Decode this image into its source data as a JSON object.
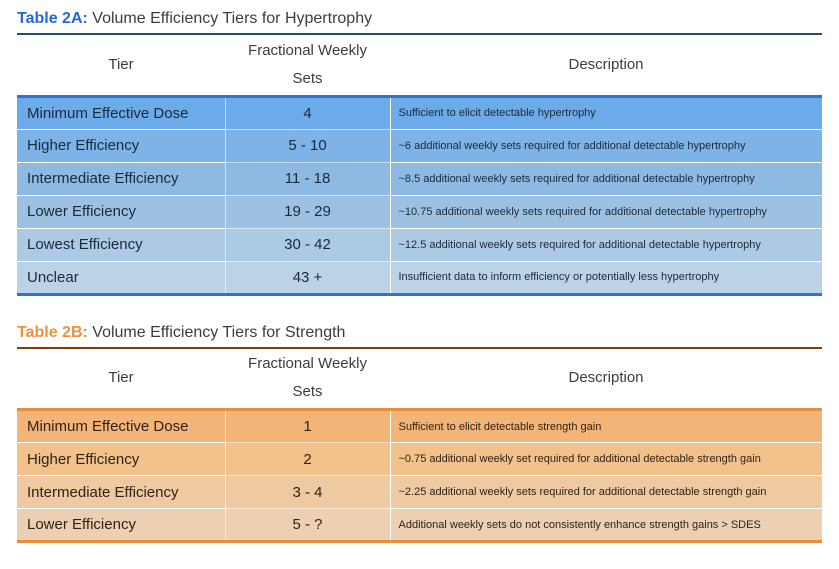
{
  "page": {
    "background": "#ffffff",
    "caption_text_color": "#3d3d3d"
  },
  "tables": [
    {
      "title_label": "Table 2A:",
      "title_text": "Volume Efficiency Tiers for Hypertrophy",
      "accent_color": "#2767d9",
      "top_border_color": "#1f4e79",
      "rule_color": "#3173cf",
      "row_text_color": "#1b2a3b",
      "columns": {
        "tier": "Tier",
        "sets": "Fractional Weekly Sets",
        "description": "Description"
      },
      "rows": [
        {
          "tier": "Minimum Effective Dose",
          "sets": "4",
          "description": "Sufficient to elicit detectable hypertrophy",
          "bg": "#6babe9"
        },
        {
          "tier": "Higher Efficiency",
          "sets": "5 - 10",
          "description": "~6 additional weekly sets required for additional detectable hypertrophy",
          "bg": "#7db3e6"
        },
        {
          "tier": "Intermediate Efficiency",
          "sets": "11 - 18",
          "description": "~8.5 additional weekly sets required for additional detectable hypertrophy",
          "bg": "#8db9e3"
        },
        {
          "tier": "Lower Efficiency",
          "sets": "19 - 29",
          "description": "~10.75 additional weekly sets required for additional detectable hypertrophy",
          "bg": "#9dc1e2"
        },
        {
          "tier": "Lowest Efficiency",
          "sets": "30 - 42",
          "description": "~12.5 additional weekly sets required for additional detectable hypertrophy",
          "bg": "#adcae4"
        },
        {
          "tier": "Unclear",
          "sets": "43 +",
          "description": "Insufficient data to inform efficiency or potentially less hypertrophy",
          "bg": "#bcd2e7"
        }
      ]
    },
    {
      "title_label": "Table 2B:",
      "title_text": "Volume Efficiency Tiers for Strength",
      "accent_color": "#e8913f",
      "top_border_color": "#843c0c",
      "rule_color": "#e78f3f",
      "row_text_color": "#2f2315",
      "columns": {
        "tier": "Tier",
        "sets": "Fractional Weekly Sets",
        "description": "Description"
      },
      "rows": [
        {
          "tier": "Minimum Effective Dose",
          "sets": "1",
          "description": "Sufficient to elicit detectable strength gain",
          "bg": "#f3b477"
        },
        {
          "tier": "Higher Efficiency",
          "sets": "2",
          "description": "~0.75 additional weekly set required for additional detectable strength gain",
          "bg": "#f3c18c"
        },
        {
          "tier": "Intermediate Efficiency",
          "sets": "3 - 4",
          "description": "~2.25 additional weekly sets required for additional detectable strength gain",
          "bg": "#eec9a1"
        },
        {
          "tier": "Lower Efficiency",
          "sets": "5 - ?",
          "description": "Additional weekly sets do not consistently enhance strength gains > SDES",
          "bg": "#edd0b1"
        }
      ]
    }
  ]
}
